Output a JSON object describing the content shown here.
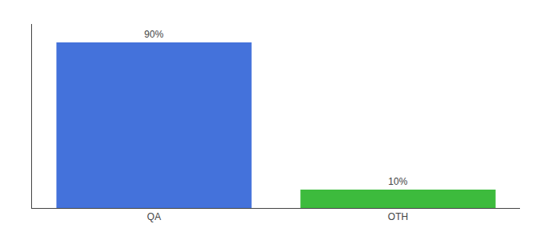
{
  "chart_data": {
    "type": "bar",
    "categories": [
      "QA",
      "OTH"
    ],
    "values": [
      90,
      10
    ],
    "value_labels": [
      "90%",
      "10%"
    ],
    "colors": [
      "#4472db",
      "#3dbb3d"
    ],
    "ylim": [
      0,
      100
    ],
    "data_labels": true,
    "tick_labels": "x",
    "grid": false
  }
}
